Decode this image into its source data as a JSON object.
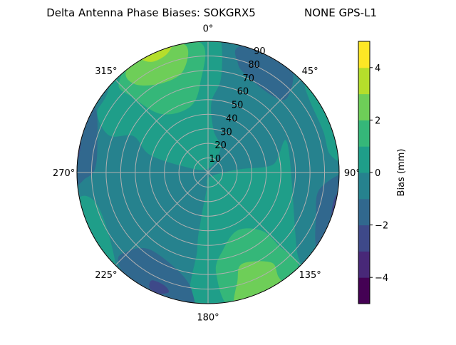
{
  "chart_data": {
    "type": "polar-contour",
    "title": "Delta Antenna Phase Biases: SOKGRX5",
    "subtitle": "NONE GPS-L1",
    "angular_axis": {
      "zero_location": "top",
      "direction": "clockwise",
      "tick_labels": [
        "0°",
        "45°",
        "90°",
        "135°",
        "180°",
        "225°",
        "270°",
        "315°"
      ],
      "tick_values": [
        0,
        45,
        90,
        135,
        180,
        225,
        270,
        315
      ]
    },
    "radial_axis": {
      "range": [
        0,
        90
      ],
      "tick_values": [
        10,
        20,
        30,
        40,
        50,
        60,
        70,
        80,
        90
      ],
      "tick_labels": [
        "10",
        "20",
        "30",
        "40",
        "50",
        "60",
        "70",
        "80",
        "90"
      ]
    },
    "grid": true,
    "colorbar": {
      "label": "Bias (mm)",
      "range": [
        -5,
        5
      ],
      "levels": [
        -5,
        -4,
        -3,
        -2,
        -1,
        0,
        1,
        2,
        3,
        4,
        5
      ],
      "tick_values": [
        -4,
        -2,
        0,
        2,
        4
      ],
      "tick_labels": [
        "−4",
        "−2",
        "0",
        "2",
        "4"
      ],
      "colors": [
        "#440154",
        "#482878",
        "#3e4989",
        "#31688e",
        "#26828e",
        "#1f9e89",
        "#35b779",
        "#6ece58",
        "#b5de2b",
        "#fde725"
      ]
    },
    "background_level": -0.5,
    "regions": [
      {
        "level": 0.5,
        "points": [
          [
            0,
            92
          ],
          [
            5.5,
            91
          ],
          [
            7.8,
            65
          ],
          [
            2.7,
            48
          ],
          [
            7.7,
            29
          ],
          [
            27,
            19
          ],
          [
            0,
            2.6
          ],
          [
            284,
            17.8
          ],
          [
            287,
            42
          ],
          [
            296,
            57
          ],
          [
            290.5,
            72.4
          ],
          [
            297.8,
            86
          ],
          [
            307,
            87.5
          ],
          [
            328,
            101
          ]
        ]
      },
      {
        "level": 0.5,
        "points": [
          [
            180,
            4
          ],
          [
            90,
            10.4
          ],
          [
            84,
            23.6
          ],
          [
            83,
            45
          ],
          [
            70,
            58
          ],
          [
            131,
            80.7
          ],
          [
            139.6,
            101
          ],
          [
            184.5,
            95
          ],
          [
            188,
            53
          ],
          [
            188.7,
            33.7
          ],
          [
            185,
            12
          ]
        ]
      },
      {
        "level": 0.5,
        "points": [
          [
            47.8,
            91
          ],
          [
            53.3,
            86
          ],
          [
            70,
            84
          ],
          [
            81.6,
            84.7
          ],
          [
            84,
            95
          ],
          [
            56,
            100
          ]
        ]
      },
      {
        "level": 0.5,
        "points": [
          [
            258,
            91
          ],
          [
            255.4,
            80
          ],
          [
            236.6,
            81
          ],
          [
            223,
            94.6
          ],
          [
            240,
            100
          ]
        ]
      },
      {
        "level": 1.5,
        "points": [
          [
            356.8,
            89
          ],
          [
            355,
            61.5
          ],
          [
            344.6,
            46.7
          ],
          [
            321.4,
            51.3
          ],
          [
            315,
            72.8
          ],
          [
            315,
            86.7
          ],
          [
            331.8,
            95
          ]
        ]
      },
      {
        "level": 1.5,
        "points": [
          [
            153,
            44.6
          ],
          [
            137.5,
            54
          ],
          [
            136,
            69
          ],
          [
            137.9,
            91
          ],
          [
            168.8,
            95
          ],
          [
            175.4,
            69.3
          ],
          [
            168.8,
            53.8
          ]
        ]
      },
      {
        "level": 2.5,
        "points": [
          [
            349.9,
            88.8
          ],
          [
            346,
            71.6
          ],
          [
            332.4,
            69
          ],
          [
            320.5,
            78.4
          ],
          [
            321,
            89.5
          ],
          [
            334.5,
            96.8
          ]
        ]
      },
      {
        "level": 2.5,
        "points": [
          [
            159.4,
            66.9
          ],
          [
            145,
            75.3
          ],
          [
            145.9,
            85.5
          ],
          [
            147.8,
            99
          ],
          [
            167.8,
            95.8
          ],
          [
            164.7,
            76.7
          ]
        ]
      },
      {
        "level": 3.5,
        "points": [
          [
            344,
            91.8
          ],
          [
            340.5,
            85.8
          ],
          [
            333,
            85.2
          ],
          [
            329.6,
            92
          ],
          [
            337,
            96
          ]
        ]
      },
      {
        "level": -1.5,
        "points": [
          [
            13.2,
            88
          ],
          [
            24,
            97
          ],
          [
            39,
            91.6
          ],
          [
            46.6,
            75
          ],
          [
            40.5,
            68.8
          ],
          [
            20.3,
            72.3
          ],
          [
            14.9,
            78.6
          ]
        ]
      },
      {
        "level": -1.5,
        "points": [
          [
            300,
            89.7
          ],
          [
            285,
            78.7
          ],
          [
            272,
            77.6
          ],
          [
            267.3,
            84.2
          ],
          [
            266.6,
            92.5
          ],
          [
            296,
            102
          ]
        ]
      },
      {
        "level": -1.5,
        "points": [
          [
            90,
            100
          ],
          [
            97.7,
            78
          ],
          [
            112,
            79.9
          ],
          [
            124.9,
            92.3
          ],
          [
            110,
            100
          ]
        ]
      },
      {
        "level": -1.5,
        "points": [
          [
            226,
            78.4
          ],
          [
            217.2,
            66.3
          ],
          [
            195.3,
            71.6
          ],
          [
            187.5,
            82.9
          ],
          [
            187.4,
            96
          ],
          [
            207,
            99.5
          ],
          [
            224.4,
            87.6
          ]
        ]
      },
      {
        "level": -2.5,
        "points": [
          [
            292,
            97
          ],
          [
            290.3,
            92.3
          ],
          [
            282.2,
            89.4
          ],
          [
            275.7,
            89.7
          ],
          [
            275.6,
            92.8
          ],
          [
            292,
            99
          ]
        ]
      },
      {
        "level": -2.5,
        "points": [
          [
            101,
            88.7
          ],
          [
            109.5,
            89.8
          ],
          [
            112,
            96
          ],
          [
            100,
            92
          ]
        ]
      },
      {
        "level": -2.5,
        "points": [
          [
            207.5,
            83.4
          ],
          [
            201.4,
            83
          ],
          [
            198.2,
            86.5
          ],
          [
            203,
            90.2
          ],
          [
            207,
            88.5
          ]
        ]
      }
    ]
  }
}
